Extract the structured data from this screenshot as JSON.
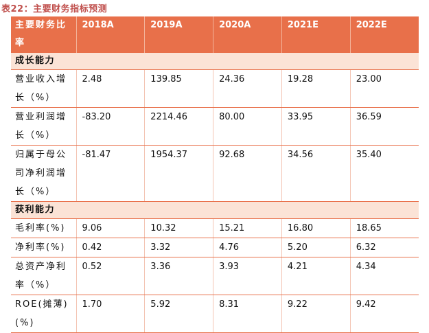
{
  "caption": "表22：主要财务指标预测",
  "header": {
    "label": "主要财务比率",
    "years": [
      "2018A",
      "2019A",
      "2020A",
      "2021E",
      "2022E"
    ]
  },
  "sections": [
    {
      "title": "成长能力",
      "rows": [
        {
          "label": "营业收入增长（%）",
          "values": [
            "2.48",
            "139.85",
            "24.36",
            "19.28",
            "23.00"
          ]
        },
        {
          "label": "营业利润增长（%）",
          "values": [
            "-83.20",
            "2214.46",
            "80.00",
            "33.95",
            "36.59"
          ]
        },
        {
          "label": "归属于母公司净利润增长（%）",
          "values": [
            "-81.47",
            "1954.37",
            "92.68",
            "34.56",
            "35.40"
          ]
        }
      ]
    },
    {
      "title": "获利能力",
      "rows": [
        {
          "label": "毛利率(%)",
          "values": [
            "9.06",
            "10.32",
            "15.21",
            "16.80",
            "18.65"
          ]
        },
        {
          "label": "净利率(%)",
          "values": [
            "0.42",
            "3.32",
            "4.76",
            "5.20",
            "6.32"
          ]
        },
        {
          "label": "总资产净利率（%）",
          "values": [
            "0.52",
            "3.36",
            "3.93",
            "4.21",
            "4.34"
          ]
        },
        {
          "label": "ROE(摊薄)(%)",
          "values": [
            "1.70",
            "5.92",
            "8.31",
            "9.22",
            "9.42"
          ]
        }
      ]
    }
  ]
}
